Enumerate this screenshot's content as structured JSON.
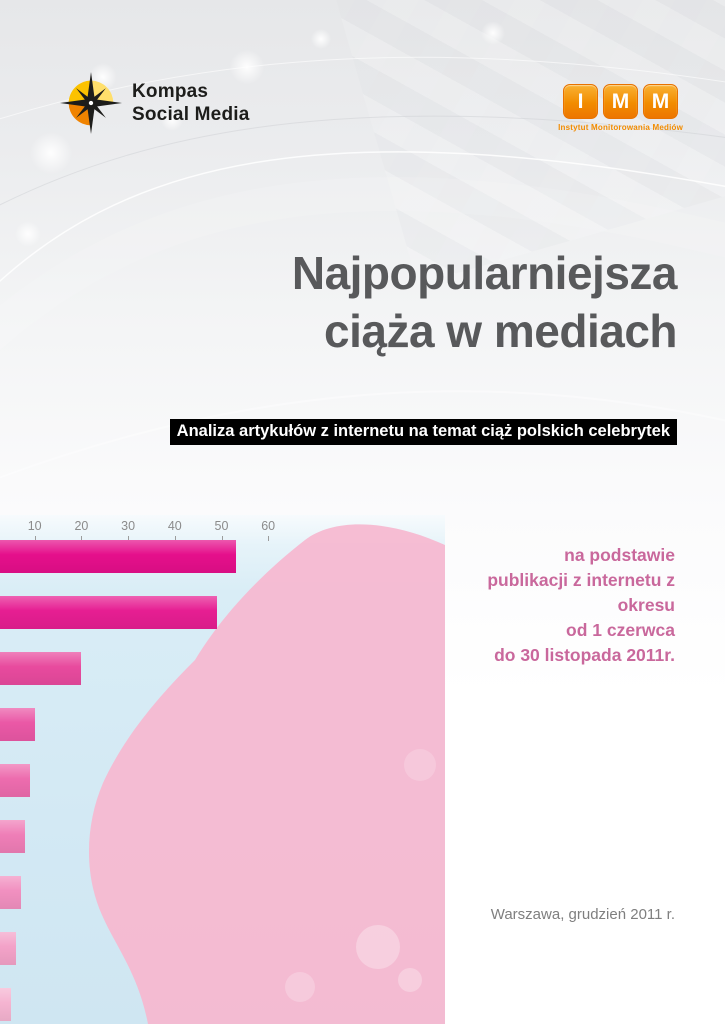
{
  "header": {
    "kompas": {
      "name_line1": "Kompas",
      "name_line2": "Social Media"
    },
    "imm": {
      "letters": [
        "I",
        "M",
        "M"
      ],
      "subtitle": "Instytut Monitorowania Mediów"
    }
  },
  "title": {
    "line1": "Najpopularniejsza",
    "line2": "ciąża w mediach"
  },
  "subtitle": {
    "text": "Analiza artykułów z internetu na temat ciąż polskich celebrytek"
  },
  "side_text": {
    "lines": [
      "na podstawie",
      "publikacji z internetu z",
      "okresu",
      "od 1 czerwca",
      "do 30 listopada 2011r."
    ]
  },
  "footer": {
    "text": "Warszawa, grudzień 2011 r."
  },
  "colors": {
    "title": "#58595b",
    "subtitle_bg": "#000000",
    "subtitle_fg": "#ffffff",
    "side_text": "#c9689c",
    "footer": "#7f7f7f",
    "imm_orange": "#f28c00",
    "chart_bg": "#d6eaf4",
    "silhouette_pink": "#f6b7cf"
  },
  "chart_data": {
    "type": "bar",
    "orientation": "horizontal",
    "title": "",
    "tick_labels": [
      "10",
      "20",
      "30",
      "40",
      "50",
      "60"
    ],
    "values": [
      53,
      49,
      20,
      10,
      9,
      8,
      7,
      6,
      5
    ],
    "bar_colors": [
      "#e50f8b",
      "#e61e92",
      "#e84a9e",
      "#ea58a6",
      "#ed6cae",
      "#ef7eb7",
      "#f190c0",
      "#f3a2c8",
      "#f5b4d1"
    ],
    "xlim": [
      0,
      63
    ],
    "legend": "none",
    "grid": "off"
  }
}
